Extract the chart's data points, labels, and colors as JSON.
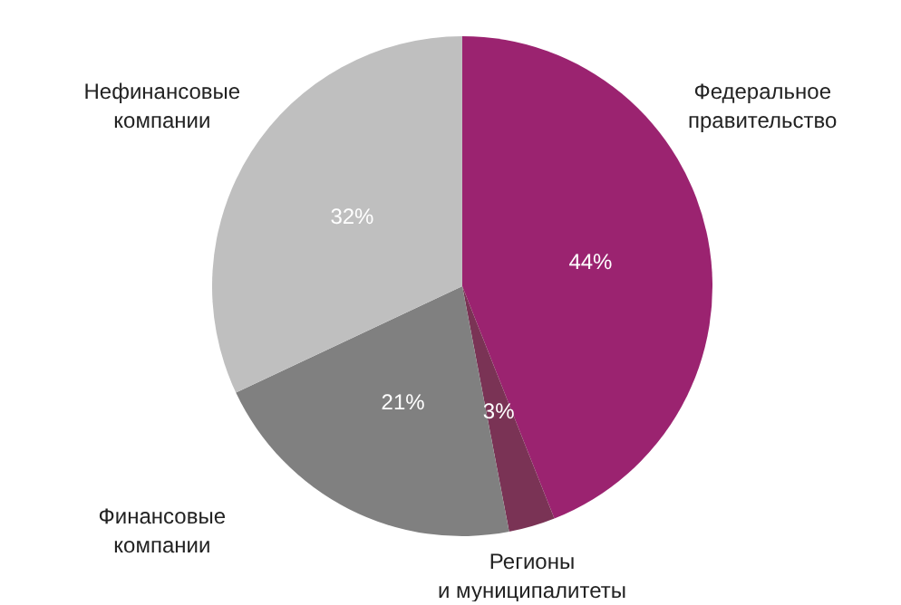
{
  "chart_data": {
    "type": "pie",
    "categories": [
      "Федеральное правительство",
      "Регионы и муниципалитеты",
      "Финансовые компании",
      "Нефинансовые компании"
    ],
    "values": [
      44,
      3,
      21,
      32
    ],
    "value_labels": [
      "44%",
      "3%",
      "21%",
      "32%"
    ],
    "colors": [
      "#9b2370",
      "#7a3355",
      "#808080",
      "#bfbfbf"
    ],
    "legend": false
  }
}
